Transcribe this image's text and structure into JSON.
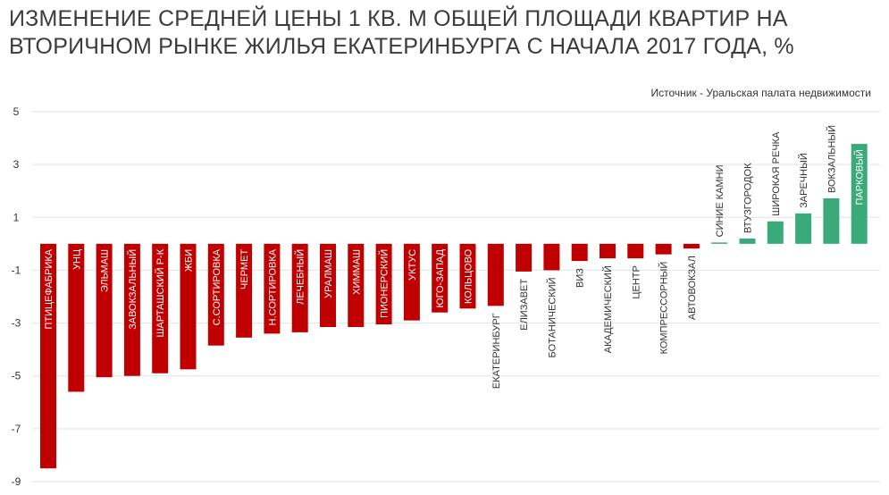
{
  "title_lines": [
    "ИЗМЕНЕНИЕ СРЕДНЕЙ ЦЕНЫ 1 КВ. М ОБЩЕЙ ПЛОЩАДИ КВАРТИР НА",
    "ВТОРИЧНОМ РЫНКЕ ЖИЛЬЯ ЕКАТЕРИНБУРГА С НАЧАЛА 2017 ГОДА, %"
  ],
  "source": "Источник - Уральская палата недвижимости",
  "colors": {
    "negative": "#c00000",
    "positive": "#3aaa7a",
    "grid": "#e2e2e2",
    "label": "#333333"
  },
  "chart_data": {
    "type": "bar",
    "title": "ИЗМЕНЕНИЕ СРЕДНЕЙ ЦЕНЫ 1 КВ. М ОБЩЕЙ ПЛОЩАДИ КВАРТИР НА ВТОРИЧНОМ РЫНКЕ ЖИЛЬЯ ЕКАТЕРИНБУРГА С НАЧАЛА 2017 ГОДА, %",
    "ylim": [
      -9,
      5
    ],
    "yticks": [
      5,
      3,
      1,
      -1,
      -3,
      -5,
      -7,
      -9
    ],
    "ytick_labels": [
      "5",
      "3",
      "1",
      "-1",
      "-3",
      "-5",
      "-7",
      "-9"
    ],
    "grid": true,
    "categories": [
      "ПТИЦЕФАБРИКА",
      "УНЦ",
      "ЭЛЬМАШ",
      "ЗАВОКЗАЛЬНЫЙ",
      "ШАРТАШСКИЙ Р-К",
      "ЖБИ",
      "С.СОРТИРОВКА",
      "ЧЕРМЕТ",
      "Н.СОРТИРОВКА",
      "ЛЕЧЕБНЫЙ",
      "УРАЛМАШ",
      "ХИММАШ",
      "ПИОНЕРСКИЙ",
      "УКТУС",
      "ЮГО-ЗАПАД",
      "КОЛЬЦОВО",
      "ЕКАТЕРИНБУРГ",
      "ЕЛИЗАВЕТ",
      "БОТАНИЧЕСКИЙ",
      "ВИЗ",
      "АКАДЕМИЧЕСКИЙ",
      "ЦЕНТР",
      "КОМПРЕССОРНЫЙ",
      "АВТОВОКЗАЛ",
      "СИНИЕ КАМНИ",
      "ВТУЗГОРОДОК",
      "ШИРОКАЯ РЕЧКА",
      "ЗАРЕЧНЫЙ",
      "ВОКЗАЛЬНЫЙ",
      "ПАРКОВЫЙ"
    ],
    "values": [
      -8.5,
      -5.6,
      -5.05,
      -5.0,
      -4.9,
      -4.75,
      -3.85,
      -3.55,
      -3.4,
      -3.35,
      -3.15,
      -3.15,
      -3.05,
      -2.9,
      -2.6,
      -2.45,
      -2.35,
      -1.05,
      -1.0,
      -0.65,
      -0.55,
      -0.55,
      -0.4,
      -0.18,
      0.05,
      0.2,
      0.85,
      1.15,
      1.72,
      3.78
    ]
  }
}
